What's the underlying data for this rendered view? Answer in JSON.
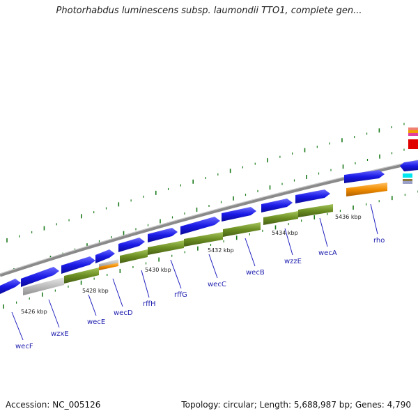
{
  "title": "Photorhabdus luminescens subsp. laumondii TTO1, complete gen...",
  "footer": {
    "accession": "Accession: NC_005126",
    "summary": "Topology: circular; Length: 5,688,987 bp; Genes: 4,790"
  },
  "colors": {
    "cds": "#1a1ae6",
    "gene_green": "#6b8e23",
    "gene_gray": "#bdbdbd",
    "gene_orange": "#f08c00",
    "backbone": "#8a8a8a",
    "label": "#2020b0",
    "tick": "#1a7a1a"
  },
  "kbp_labels": [
    "5426 kbp",
    "5428 kbp",
    "5430 kbp",
    "5432 kbp",
    "5434 kbp",
    "5436 kbp"
  ],
  "genes": [
    {
      "name": "wecF"
    },
    {
      "name": "wzxE"
    },
    {
      "name": "wecE"
    },
    {
      "name": "wecD"
    },
    {
      "name": "rffH"
    },
    {
      "name": "rffG"
    },
    {
      "name": "wecC"
    },
    {
      "name": "wecB"
    },
    {
      "name": "wzzE"
    },
    {
      "name": "wecA"
    },
    {
      "name": "rho"
    }
  ]
}
